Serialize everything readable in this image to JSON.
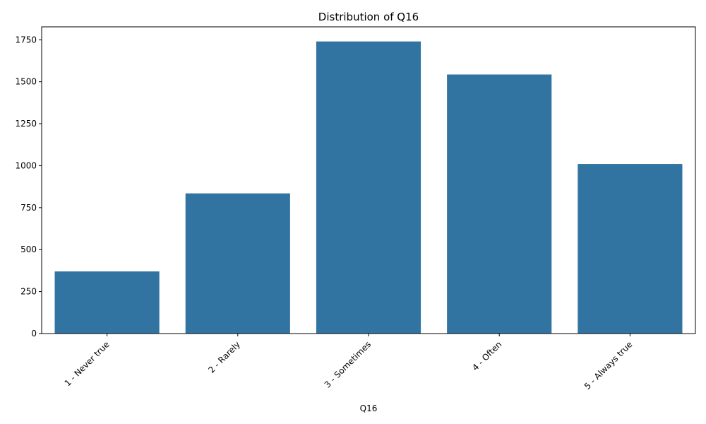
{
  "chart_data": {
    "type": "bar",
    "title": "Distribution of Q16",
    "xlabel": "Q16",
    "ylabel": "",
    "categories": [
      "1 - Never true",
      "2 - Rarely",
      "3 - Sometimes",
      "4 - Often",
      "5 - Always true"
    ],
    "values": [
      370,
      835,
      1740,
      1543,
      1010
    ],
    "ylim": [
      0,
      1827
    ],
    "yticks": [
      0,
      250,
      500,
      750,
      1000,
      1250,
      1500,
      1750
    ],
    "bar_color": "#3274a1",
    "grid": false,
    "legend": false
  }
}
